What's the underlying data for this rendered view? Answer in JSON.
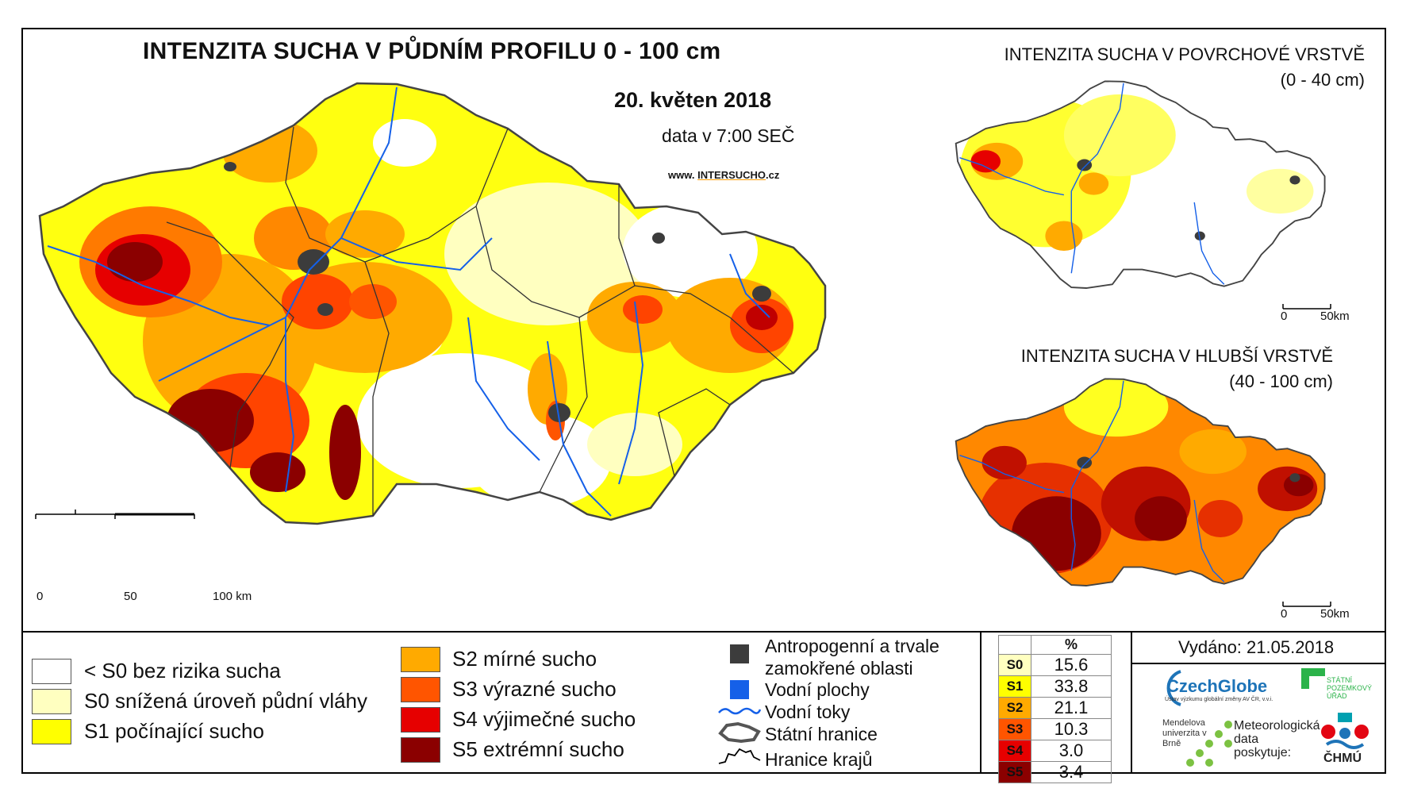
{
  "main_map": {
    "title": "INTENZITA SUCHA V PŮDNÍM PROFILU 0 - 100 cm",
    "date": "20. květen 2018",
    "data_time": "data v 7:00 SEČ",
    "url_prefix": "www.",
    "url_brand": "INTERSUCHO",
    "url_suffix": ".cz",
    "scale": [
      "0",
      "50",
      "100 km"
    ]
  },
  "inset_surface": {
    "title": "INTENZITA SUCHA V POVRCHOVÉ VRSTVĚ",
    "subtitle": "(0 - 40 cm)",
    "scale": [
      "0",
      "50km"
    ]
  },
  "inset_deep": {
    "title": "INTENZITA SUCHA V HLUBŠÍ VRSTVĚ",
    "subtitle": "(40 - 100 cm)",
    "scale": [
      "0",
      "50km"
    ]
  },
  "legend": {
    "classes": [
      {
        "label": "< S0 bez rizika sucha",
        "color": "#ffffff"
      },
      {
        "label": "S0 snížená úroveň půdní vláhy",
        "color": "#ffffc0"
      },
      {
        "label": "S1 počínající sucho",
        "color": "#ffff00"
      },
      {
        "label": "S2 mírné sucho",
        "color": "#ffaa00"
      },
      {
        "label": "S3 výrazné sucho",
        "color": "#ff5500"
      },
      {
        "label": "S4 výjimečné sucho",
        "color": "#e60000"
      },
      {
        "label": "S5 extrémní sucho",
        "color": "#8b0000"
      }
    ],
    "symbols": [
      {
        "label": "Antropogenní a trvale zamokřené oblasti",
        "color": "#3c3c3c",
        "icon": "square-dark-icon"
      },
      {
        "label": "Vodní plochy",
        "color": "#1560e8",
        "icon": "square-blue-icon"
      },
      {
        "label": "Vodní toky",
        "color": "#1560e8",
        "icon": "river-line-icon"
      },
      {
        "label": "Státní hranice",
        "color": "#000000",
        "icon": "state-border-icon"
      },
      {
        "label": "Hranice krajů",
        "color": "#000000",
        "icon": "region-border-icon"
      }
    ]
  },
  "stats": {
    "header": "%",
    "rows": [
      {
        "cls": "S0",
        "value": "15.6",
        "color": "#ffffc0"
      },
      {
        "cls": "S1",
        "value": "33.8",
        "color": "#ffff00"
      },
      {
        "cls": "S2",
        "value": "21.1",
        "color": "#ffaa00"
      },
      {
        "cls": "S3",
        "value": "10.3",
        "color": "#ff5500"
      },
      {
        "cls": "S4",
        "value": "3.0",
        "color": "#e60000"
      },
      {
        "cls": "S5",
        "value": "3.4",
        "color": "#8b0000"
      }
    ]
  },
  "footer": {
    "issued": "Vydáno: 21.05.2018",
    "logo_czechglobe": "CzechGlobe",
    "czechglobe_sub": "Ústav výzkumu globální změny AV ČR, v.v.i.",
    "logo_spu": "STÁTNÍ POZEMKOVÝ ÚŘAD",
    "logo_mendel": "Mendelova univerzita v Brně",
    "met_text": "Meteorologická data poskytuje:",
    "logo_chmu": "ČHMÚ"
  }
}
